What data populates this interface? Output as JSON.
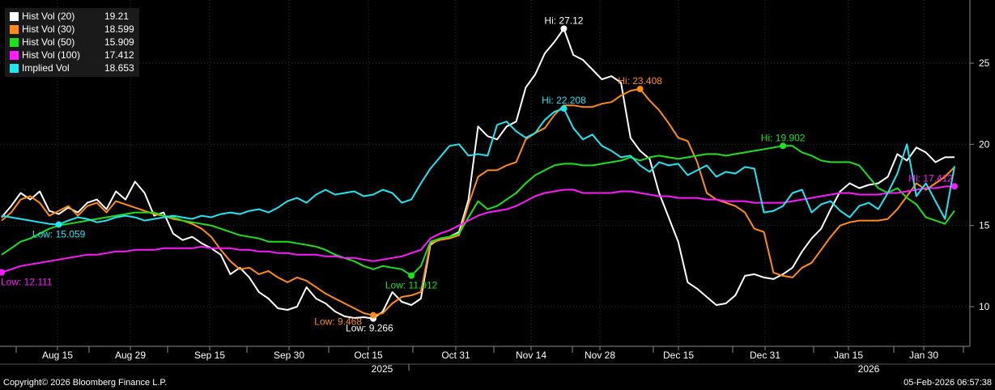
{
  "chart_data": {
    "type": "line",
    "title": "",
    "xlabel": "",
    "ylabel": "",
    "ylim": [
      8,
      28
    ],
    "y_ticks": [
      10,
      15,
      20,
      25
    ],
    "x_ticks": [
      "Aug 15",
      "Aug 29",
      "Sep 15",
      "Sep 30",
      "Oct 15",
      "Oct 31",
      "Nov 14",
      "Nov 28",
      "Dec 15",
      "Dec 31",
      "Jan 15",
      "Jan 30"
    ],
    "year_labels": [
      "2025",
      "2026"
    ],
    "grid": true,
    "legend_position": "top-left",
    "series": [
      {
        "name": "Hist Vol (20)",
        "last": "19.21",
        "color": "#ffffff",
        "values": [
          15.5,
          16.2,
          17.0,
          16.6,
          17.1,
          15.9,
          15.7,
          16.1,
          15.8,
          16.4,
          16.6,
          16.0,
          17.1,
          16.6,
          17.7,
          17.0,
          15.6,
          15.8,
          14.5,
          14.1,
          14.3,
          13.9,
          13.6,
          13.2,
          12.0,
          12.4,
          11.8,
          10.9,
          10.5,
          9.9,
          9.8,
          10.0,
          11.2,
          10.5,
          10.2,
          9.7,
          9.4,
          9.3,
          9.35,
          9.266,
          9.7,
          10.9,
          10.3,
          10.1,
          10.5,
          13.8,
          14.2,
          14.3,
          14.6,
          16.6,
          21.1,
          20.5,
          20.3,
          21.1,
          21.4,
          23.5,
          24.3,
          25.6,
          26.3,
          27.12,
          25.5,
          25.2,
          24.6,
          24.0,
          24.2,
          23.8,
          20.4,
          19.6,
          19.1,
          17.0,
          15.5,
          14.0,
          11.5,
          11.1,
          10.6,
          10.1,
          10.2,
          10.7,
          11.9,
          12.0,
          11.8,
          11.7,
          12.0,
          12.4,
          13.4,
          14.2,
          14.8,
          16.0,
          17.1,
          17.6,
          17.3,
          17.5,
          17.6,
          18.0,
          19.4,
          19.0,
          19.8,
          19.5,
          18.9,
          19.2,
          19.21
        ]
      },
      {
        "name": "Hist Vol (30)",
        "last": "18.599",
        "color": "#ff8c1a",
        "values": [
          15.3,
          15.8,
          16.6,
          16.8,
          16.4,
          15.6,
          15.9,
          16.2,
          15.6,
          16.2,
          16.4,
          15.8,
          16.5,
          16.3,
          16.1,
          15.9,
          15.7,
          15.6,
          15.4,
          15.3,
          15.1,
          14.8,
          14.3,
          13.5,
          12.8,
          12.3,
          12.4,
          12.0,
          12.2,
          11.8,
          11.5,
          11.8,
          11.6,
          11.2,
          10.8,
          10.5,
          10.2,
          9.9,
          9.6,
          9.468,
          9.6,
          10.2,
          10.6,
          10.7,
          10.9,
          13.9,
          14.1,
          14.2,
          14.4,
          16.3,
          18.0,
          18.4,
          18.4,
          18.7,
          18.9,
          20.3,
          20.7,
          21.0,
          21.8,
          22.4,
          22.4,
          22.3,
          22.3,
          22.5,
          22.6,
          23.0,
          23.3,
          23.408,
          22.7,
          22.1,
          21.3,
          20.4,
          20.2,
          18.9,
          17.0,
          16.6,
          16.4,
          16.2,
          15.8,
          14.8,
          14.6,
          12.1,
          11.9,
          11.8,
          12.4,
          12.7,
          13.5,
          14.3,
          15.0,
          15.2,
          15.3,
          15.3,
          15.3,
          15.4,
          16.0,
          16.8,
          17.6,
          17.2,
          17.6,
          18.0,
          18.599
        ]
      },
      {
        "name": "Hist Vol (50)",
        "last": "15.909",
        "color": "#1ee01e",
        "values": [
          13.2,
          13.6,
          14.0,
          14.2,
          14.5,
          14.8,
          15.0,
          15.1,
          15.2,
          15.3,
          15.4,
          15.5,
          15.6,
          15.7,
          15.8,
          15.8,
          15.8,
          15.6,
          15.5,
          15.3,
          15.2,
          15.1,
          15.0,
          14.8,
          14.6,
          14.4,
          14.3,
          14.2,
          14.0,
          14.0,
          14.0,
          13.9,
          13.8,
          13.7,
          13.5,
          13.2,
          13.0,
          12.8,
          12.5,
          12.3,
          12.5,
          12.4,
          12.3,
          11.912,
          12.5,
          14.0,
          14.2,
          14.3,
          14.5,
          15.5,
          16.5,
          16.0,
          16.2,
          16.6,
          17.0,
          17.6,
          18.1,
          18.4,
          18.7,
          18.8,
          18.8,
          18.7,
          18.7,
          18.8,
          18.9,
          19.0,
          19.2,
          19.0,
          19.2,
          19.3,
          19.2,
          19.1,
          19.2,
          19.3,
          19.4,
          19.4,
          19.3,
          19.4,
          19.5,
          19.6,
          19.7,
          19.8,
          19.902,
          19.9,
          19.5,
          19.3,
          19.0,
          18.9,
          18.9,
          18.9,
          18.7,
          18.0,
          17.3,
          17.0,
          17.3,
          16.7,
          16.3,
          15.5,
          15.3,
          15.1,
          15.909
        ]
      },
      {
        "name": "Hist Vol (100)",
        "last": "17.412",
        "color": "#ff1aff",
        "values": [
          12.111,
          12.3,
          12.5,
          12.6,
          12.7,
          12.8,
          12.9,
          13.0,
          13.1,
          13.2,
          13.2,
          13.3,
          13.4,
          13.4,
          13.5,
          13.5,
          13.5,
          13.6,
          13.6,
          13.6,
          13.6,
          13.7,
          13.6,
          13.6,
          13.6,
          13.5,
          13.5,
          13.4,
          13.4,
          13.3,
          13.3,
          13.2,
          13.2,
          13.2,
          13.1,
          13.1,
          13.0,
          13.0,
          12.9,
          12.8,
          12.9,
          13.0,
          13.1,
          13.3,
          13.5,
          14.2,
          14.5,
          14.7,
          15.0,
          15.3,
          15.6,
          15.8,
          15.9,
          16.0,
          16.2,
          16.5,
          16.8,
          17.0,
          17.1,
          17.2,
          17.2,
          17.0,
          17.0,
          17.0,
          17.0,
          17.1,
          17.1,
          17.0,
          16.9,
          16.8,
          16.8,
          16.7,
          16.7,
          16.7,
          16.6,
          16.6,
          16.5,
          16.5,
          16.5,
          16.4,
          16.4,
          16.4,
          16.4,
          16.5,
          16.6,
          16.7,
          16.8,
          16.9,
          17.0,
          17.0,
          16.9,
          16.9,
          16.9,
          17.0,
          17.0,
          17.1,
          17.2,
          17.3,
          17.3,
          17.4,
          17.412
        ]
      },
      {
        "name": "Implied Vol",
        "last": "18.653",
        "color": "#21e6f2",
        "values": [
          15.6,
          15.5,
          15.4,
          15.3,
          15.2,
          15.1,
          15.059,
          15.3,
          15.5,
          15.4,
          15.2,
          15.3,
          15.5,
          15.6,
          15.5,
          15.3,
          15.4,
          15.5,
          15.6,
          15.5,
          15.4,
          15.6,
          15.5,
          15.7,
          15.8,
          15.7,
          15.9,
          16.0,
          15.8,
          16.1,
          16.5,
          16.7,
          16.4,
          16.9,
          17.2,
          16.9,
          17.0,
          17.1,
          16.8,
          16.9,
          17.2,
          17.0,
          16.4,
          16.6,
          17.6,
          18.5,
          19.2,
          19.9,
          20.0,
          19.3,
          19.4,
          19.3,
          21.2,
          21.4,
          20.8,
          20.4,
          20.7,
          21.5,
          22.0,
          22.208,
          21.0,
          20.3,
          20.6,
          19.9,
          19.6,
          19.2,
          19.3,
          18.7,
          18.3,
          18.9,
          18.7,
          18.8,
          18.1,
          18.4,
          18.7,
          18.0,
          18.3,
          18.2,
          18.6,
          18.5,
          15.8,
          15.9,
          16.2,
          17.0,
          17.2,
          15.8,
          16.3,
          16.5,
          15.9,
          15.5,
          16.2,
          16.4,
          16.0,
          17.0,
          18.2,
          20.0,
          16.8,
          17.6,
          16.5,
          15.4,
          18.653
        ]
      }
    ],
    "annotations": [
      {
        "text": "Hi: 27.12",
        "series": 0,
        "index": 59,
        "kind": "hi"
      },
      {
        "text": "Low: 9.266",
        "series": 0,
        "index": 39,
        "kind": "low"
      },
      {
        "text": "Hi: 23.408",
        "series": 1,
        "index": 67,
        "kind": "hi"
      },
      {
        "text": "Low: 9.468",
        "series": 1,
        "index": 39,
        "kind": "low"
      },
      {
        "text": "Hi: 19.902",
        "series": 2,
        "index": 82,
        "kind": "hi"
      },
      {
        "text": "Low: 11.912",
        "series": 2,
        "index": 43,
        "kind": "low"
      },
      {
        "text": "Hi: 17.412",
        "series": 3,
        "index": 100,
        "kind": "hi"
      },
      {
        "text": "Low: 12.111",
        "series": 3,
        "index": 0,
        "kind": "low"
      },
      {
        "text": "Hi: 22.208",
        "series": 4,
        "index": 59,
        "kind": "hi"
      },
      {
        "text": "Low: 15.059",
        "series": 4,
        "index": 6,
        "kind": "low"
      }
    ]
  },
  "footer": {
    "copyright": "Copyright© 2026 Bloomberg Finance L.P.",
    "timestamp": "05-Feb-2026 06:57:38"
  }
}
